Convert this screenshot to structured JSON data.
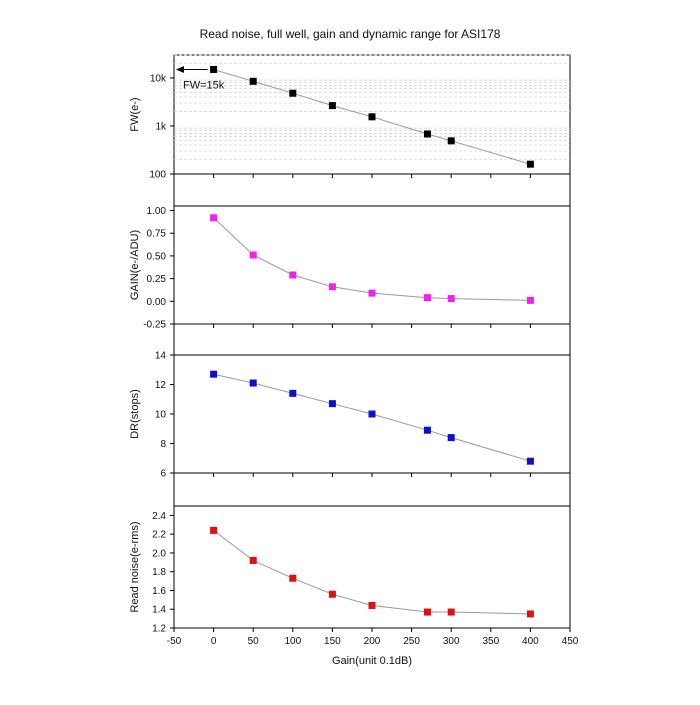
{
  "title": "Read noise, full well, gain and dynamic range for ASI178",
  "xlabel": "Gain(unit 0.1dB)",
  "annotation": "FW=15k",
  "colors": {
    "axis": "#000000",
    "line": "#9a9a9a",
    "grid": "#cfcfcf",
    "fw": "#000000",
    "gain": "#ee22ee",
    "dr": "#1010cc",
    "rn": "#dd1111"
  },
  "chart_data": [
    {
      "type": "line",
      "name": "fw",
      "ylabel": "FW(e-)",
      "y_scale": "log",
      "ylim": [
        100,
        30000
      ],
      "yticks": [
        100,
        1000,
        10000
      ],
      "ytick_labels": [
        "100",
        "1k",
        "10k"
      ],
      "grid": "minor horizontal dashed",
      "x": [
        0,
        50,
        100,
        150,
        200,
        270,
        300,
        400
      ],
      "y": [
        15000,
        8500,
        4800,
        2650,
        1550,
        680,
        490,
        160
      ],
      "marker_color": "#000000"
    },
    {
      "type": "line",
      "name": "gain",
      "ylabel": "GAIN(e-/ADU)",
      "ylim": [
        -0.25,
        1.05
      ],
      "yticks": [
        -0.25,
        0,
        0.25,
        0.5,
        0.75,
        1.0
      ],
      "ytick_labels": [
        "-0.25",
        "0.00",
        "0.25",
        "0.50",
        "0.75",
        "1.00"
      ],
      "x": [
        0,
        50,
        100,
        150,
        200,
        270,
        300,
        400
      ],
      "y": [
        0.92,
        0.51,
        0.29,
        0.16,
        0.09,
        0.04,
        0.03,
        0.01
      ],
      "marker_color": "#ee22ee"
    },
    {
      "type": "line",
      "name": "dr",
      "ylabel": "DR(stops)",
      "ylim": [
        6,
        14
      ],
      "yticks": [
        6,
        8,
        10,
        12,
        14
      ],
      "ytick_labels": [
        "6",
        "8",
        "10",
        "12",
        "14"
      ],
      "x": [
        0,
        50,
        100,
        150,
        200,
        270,
        300,
        400
      ],
      "y": [
        12.7,
        12.1,
        11.4,
        10.7,
        10.0,
        8.9,
        8.4,
        6.8
      ],
      "marker_color": "#1010cc"
    },
    {
      "type": "line",
      "name": "read_noise",
      "ylabel": "Read noise(e-rms)",
      "ylim": [
        1.2,
        2.5
      ],
      "yticks": [
        1.2,
        1.4,
        1.6,
        1.8,
        2.0,
        2.2,
        2.4
      ],
      "ytick_labels": [
        "1.2",
        "1.4",
        "1.6",
        "1.8",
        "2.0",
        "2.2",
        "2.4"
      ],
      "x": [
        0,
        50,
        100,
        150,
        200,
        270,
        300,
        400
      ],
      "y": [
        2.24,
        1.92,
        1.73,
        1.56,
        1.44,
        1.37,
        1.37,
        1.35
      ],
      "marker_color": "#dd1111"
    }
  ],
  "xaxis": {
    "xlim": [
      -50,
      450
    ],
    "xticks": [
      -50,
      0,
      50,
      100,
      150,
      200,
      250,
      300,
      350,
      400,
      450
    ],
    "xtick_labels": [
      "-50",
      "0",
      "50",
      "100",
      "150",
      "200",
      "250",
      "300",
      "350",
      "400",
      "450"
    ]
  }
}
